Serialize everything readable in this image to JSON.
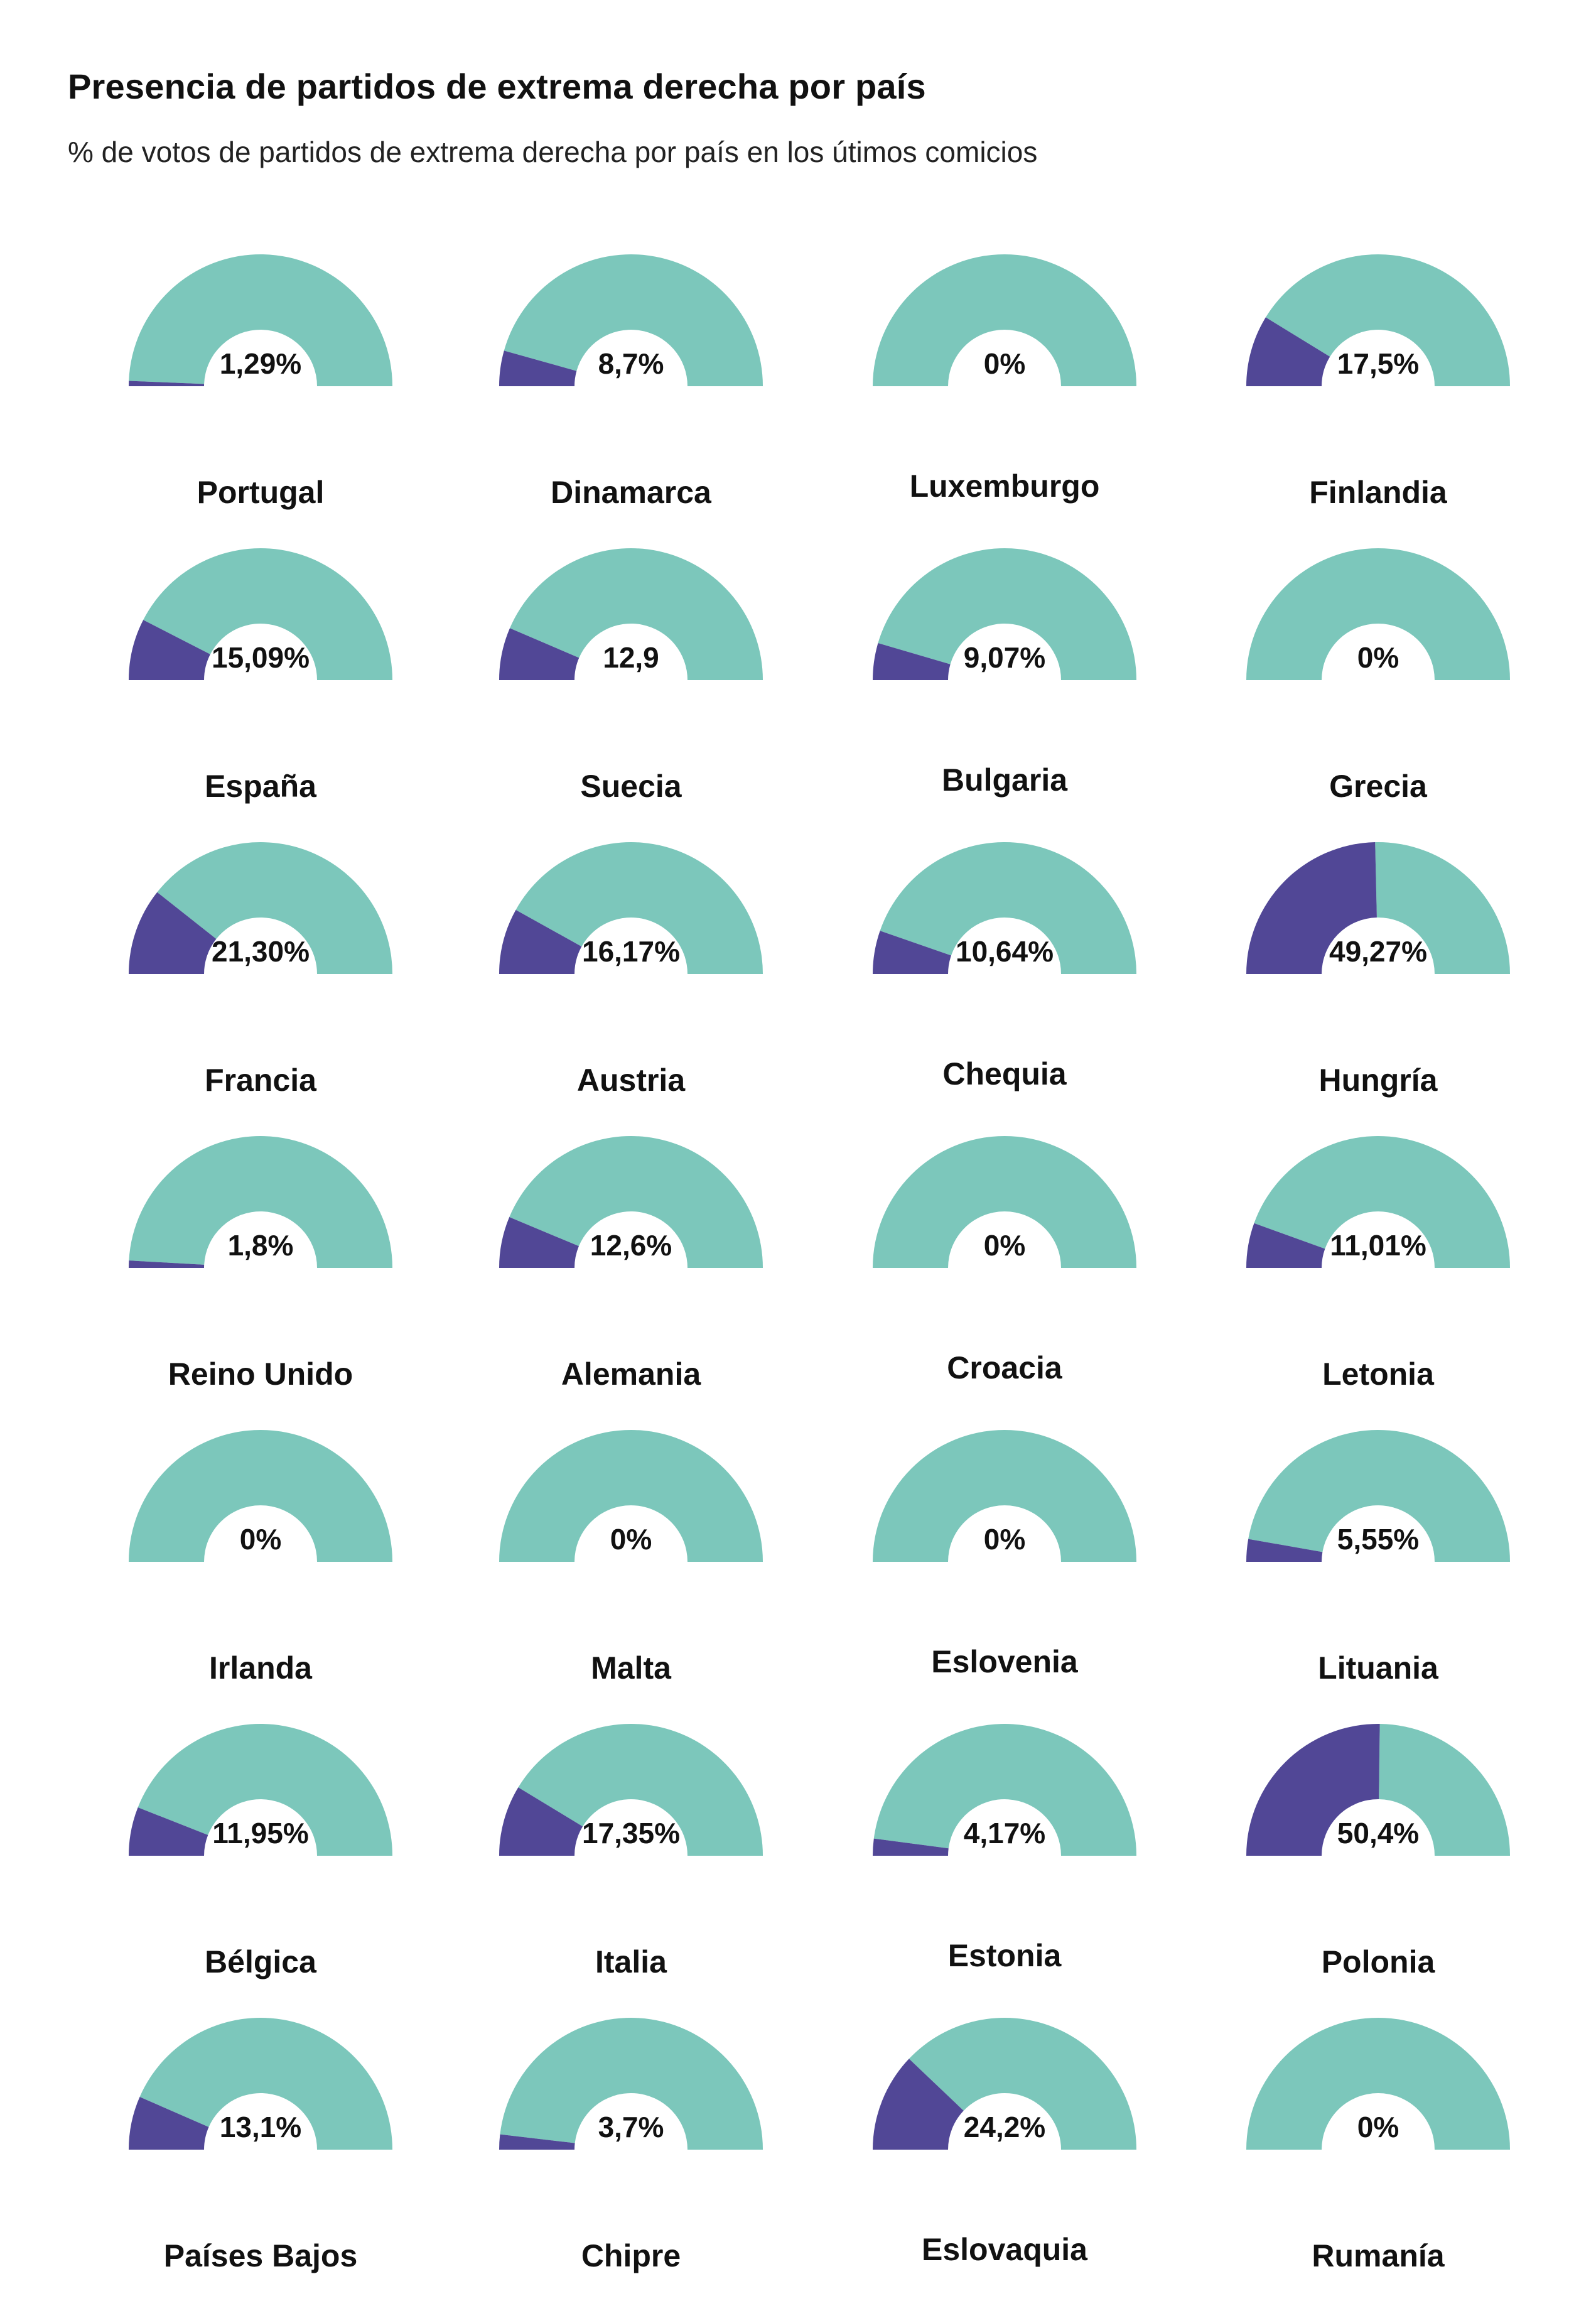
{
  "title": "Presencia de partidos de extrema derecha por país",
  "subtitle": "% de votos de partidos de extrema derecha por país en los útimos comicios",
  "colors": {
    "background_arc": "#7cc7bb",
    "value_arc": "#514796",
    "text": "#111111"
  },
  "chart_data": {
    "type": "gauge",
    "title": "Presencia de partidos de extrema derecha por país",
    "subtitle": "% de votos de partidos de extrema derecha por país en los útimos comicios",
    "scale": [
      0,
      100
    ],
    "grid": false,
    "items": [
      {
        "country": "Portugal",
        "value": 1.29,
        "label": "1,29%"
      },
      {
        "country": "Dinamarca",
        "value": 8.7,
        "label": "8,7%"
      },
      {
        "country": "Luxemburgo",
        "value": 0,
        "label": "0%"
      },
      {
        "country": "Finlandia",
        "value": 17.5,
        "label": "17,5%"
      },
      {
        "country": "España",
        "value": 15.09,
        "label": "15,09%"
      },
      {
        "country": "Suecia",
        "value": 12.9,
        "label": "12,9"
      },
      {
        "country": "Bulgaria",
        "value": 9.07,
        "label": "9,07%"
      },
      {
        "country": "Grecia",
        "value": 0,
        "label": "0%"
      },
      {
        "country": "Francia",
        "value": 21.3,
        "label": "21,30%"
      },
      {
        "country": "Austria",
        "value": 16.17,
        "label": "16,17%"
      },
      {
        "country": "Chequia",
        "value": 10.64,
        "label": "10,64%"
      },
      {
        "country": "Hungría",
        "value": 49.27,
        "label": "49,27%"
      },
      {
        "country": "Reino Unido",
        "value": 1.8,
        "label": "1,8%"
      },
      {
        "country": "Alemania",
        "value": 12.6,
        "label": "12,6%"
      },
      {
        "country": "Croacia",
        "value": 0,
        "label": "0%"
      },
      {
        "country": "Letonia",
        "value": 11.01,
        "label": "11,01%"
      },
      {
        "country": "Irlanda",
        "value": 0,
        "label": "0%"
      },
      {
        "country": "Malta",
        "value": 0,
        "label": "0%"
      },
      {
        "country": "Eslovenia",
        "value": 0,
        "label": "0%"
      },
      {
        "country": "Lituania",
        "value": 5.55,
        "label": "5,55%"
      },
      {
        "country": "Bélgica",
        "value": 11.95,
        "label": "11,95%"
      },
      {
        "country": "Italia",
        "value": 17.35,
        "label": "17,35%"
      },
      {
        "country": "Estonia",
        "value": 4.17,
        "label": "4,17%"
      },
      {
        "country": "Polonia",
        "value": 50.4,
        "label": "50,4%"
      },
      {
        "country": "Países Bajos",
        "value": 13.1,
        "label": "13,1%"
      },
      {
        "country": "Chipre",
        "value": 3.7,
        "label": "3,7%"
      },
      {
        "country": "Eslovaquia",
        "value": 24.2,
        "label": "24,2%"
      },
      {
        "country": "Rumanía",
        "value": 0,
        "label": "0%"
      }
    ]
  }
}
